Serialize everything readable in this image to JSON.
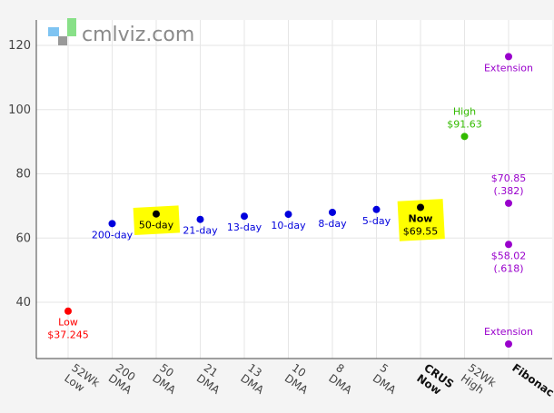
{
  "logo": {
    "text": "cmlviz.com"
  },
  "chart_data": {
    "type": "scatter",
    "ylim": [
      27,
      127
    ],
    "yticks": [
      40,
      60,
      80,
      100,
      120
    ],
    "categories": [
      {
        "lines": [
          "52Wk",
          "Low"
        ],
        "bold": false
      },
      {
        "lines": [
          "200",
          "DMA"
        ],
        "bold": false
      },
      {
        "lines": [
          "50",
          "DMA"
        ],
        "bold": false
      },
      {
        "lines": [
          "21",
          "DMA"
        ],
        "bold": false
      },
      {
        "lines": [
          "13",
          "DMA"
        ],
        "bold": false
      },
      {
        "lines": [
          "10",
          "DMA"
        ],
        "bold": false
      },
      {
        "lines": [
          "8",
          "DMA"
        ],
        "bold": false
      },
      {
        "lines": [
          "5",
          "DMA"
        ],
        "bold": false
      },
      {
        "lines": [
          "CRUS",
          "Now"
        ],
        "bold": true
      },
      {
        "lines": [
          "52Wk",
          "High"
        ],
        "bold": false
      },
      {
        "lines": [
          "Fibonac"
        ],
        "bold": true
      }
    ],
    "points": [
      {
        "cat": 0,
        "y": 37.245,
        "color": "#ff0000",
        "label": [
          "Low",
          "$37.245"
        ],
        "label_pos": "below",
        "highlight": false
      },
      {
        "cat": 1,
        "y": 64.5,
        "color": "#0000dd",
        "label": [
          "200-day"
        ],
        "label_pos": "below",
        "highlight": false
      },
      {
        "cat": 2,
        "y": 67.5,
        "color": "#000000",
        "label": [
          "50-day"
        ],
        "label_pos": "below",
        "highlight": true
      },
      {
        "cat": 3,
        "y": 65.8,
        "color": "#0000dd",
        "label": [
          "21-day"
        ],
        "label_pos": "below",
        "highlight": false
      },
      {
        "cat": 4,
        "y": 66.8,
        "color": "#0000dd",
        "label": [
          "13-day"
        ],
        "label_pos": "below",
        "highlight": false
      },
      {
        "cat": 5,
        "y": 67.4,
        "color": "#0000dd",
        "label": [
          "10-day"
        ],
        "label_pos": "below",
        "highlight": false
      },
      {
        "cat": 6,
        "y": 68.0,
        "color": "#0000dd",
        "label": [
          "8-day"
        ],
        "label_pos": "below",
        "highlight": false
      },
      {
        "cat": 7,
        "y": 68.9,
        "color": "#0000dd",
        "label": [
          "5-day"
        ],
        "label_pos": "below",
        "highlight": false
      },
      {
        "cat": 8,
        "y": 69.55,
        "color": "#000000",
        "label": [
          "Now",
          "$69.55"
        ],
        "label_pos": "below",
        "highlight": true,
        "bold_first": true
      },
      {
        "cat": 9,
        "y": 91.63,
        "color": "#33bb00",
        "label": [
          "High",
          "$91.63"
        ],
        "label_pos": "above",
        "highlight": false
      },
      {
        "cat": 10,
        "y": 116.5,
        "color": "#9900cc",
        "label": [
          "Extension"
        ],
        "label_pos": "below",
        "highlight": false
      },
      {
        "cat": 10,
        "y": 70.85,
        "color": "#9900cc",
        "label": [
          "$70.85",
          "(.382)"
        ],
        "label_pos": "above",
        "highlight": false
      },
      {
        "cat": 10,
        "y": 58.02,
        "color": "#9900cc",
        "label": [
          "$58.02",
          "(.618)"
        ],
        "label_pos": "below",
        "highlight": false
      },
      {
        "cat": 10,
        "y": 27.0,
        "color": "#9900cc",
        "label": [
          "Extension"
        ],
        "label_pos": "above",
        "highlight": false
      }
    ]
  }
}
